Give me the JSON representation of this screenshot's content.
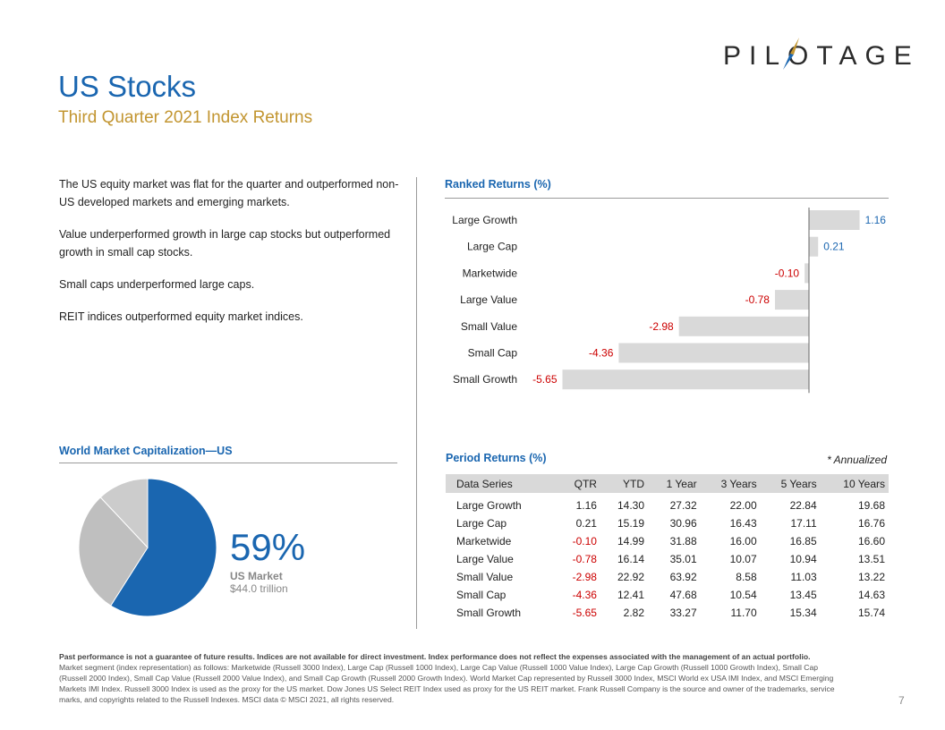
{
  "logo": {
    "text": "PILOTAGE"
  },
  "header": {
    "title": "US Stocks",
    "subtitle": "Third Quarter 2021 Index Returns"
  },
  "bullets": [
    "The US equity market was flat for the quarter and outperformed non-US developed markets and emerging markets.",
    "Value underperformed growth in large cap stocks but outperformed growth in small cap stocks.",
    "Small caps underperformed large caps.",
    "REIT indices outperformed equity market indices."
  ],
  "ranked": {
    "title": "Ranked Returns (%)"
  },
  "world_cap": {
    "title": "World Market Capitalization—US",
    "percent": "59%",
    "label": "US Market",
    "value": "$44.0 trillion"
  },
  "period": {
    "title": "Period Returns (%)",
    "annualized": "* Annualized",
    "headers": [
      "Data Series",
      "QTR",
      "YTD",
      "1 Year",
      "3 Years",
      "5 Years",
      "10 Years"
    ],
    "rows": [
      [
        "Large Growth",
        "1.16",
        "14.30",
        "27.32",
        "22.00",
        "22.84",
        "19.68"
      ],
      [
        "Large Cap",
        "0.21",
        "15.19",
        "30.96",
        "16.43",
        "17.11",
        "16.76"
      ],
      [
        "Marketwide",
        "-0.10",
        "14.99",
        "31.88",
        "16.00",
        "16.85",
        "16.60"
      ],
      [
        "Large Value",
        "-0.78",
        "16.14",
        "35.01",
        "10.07",
        "10.94",
        "13.51"
      ],
      [
        "Small Value",
        "-2.98",
        "22.92",
        "63.92",
        "8.58",
        "11.03",
        "13.22"
      ],
      [
        "Small Cap",
        "-4.36",
        "12.41",
        "47.68",
        "10.54",
        "13.45",
        "14.63"
      ],
      [
        "Small Growth",
        "-5.65",
        "2.82",
        "33.27",
        "11.70",
        "15.34",
        "15.74"
      ]
    ]
  },
  "footnote": {
    "bold": "Past performance is not a guarantee of future results. Indices are not available for direct investment. Index performance does not reflect the expenses associated with the management of an actual portfolio.",
    "text": "Market segment (index representation) as follows: Marketwide (Russell 3000 Index), Large Cap (Russell 1000 Index), Large Cap Value (Russell 1000 Value Index), Large Cap Growth (Russell 1000 Growth Index), Small Cap (Russell 2000 Index), Small Cap Value (Russell 2000 Value Index), and Small Cap Growth (Russell 2000 Growth Index). World Market Cap represented by Russell 3000 Index, MSCI World ex USA IMI Index, and MSCI Emerging Markets IMI Index. Russell 3000 Index is used as the proxy for the US market. Dow Jones US Select REIT Index used as proxy for the US REIT market. Frank Russell Company is the source and owner of the trademarks, service marks, and copyrights related to the Russell Indexes. MSCI data © MSCI 2021, all rights reserved."
  },
  "page_number": "7",
  "colors": {
    "blue": "#1a66b0",
    "gold": "#c29530",
    "negative": "#cc0000",
    "bar": "#d9d9d9",
    "pie_us": "#1a66b0",
    "pie_other1": "#bfbfbf",
    "pie_other2": "#cccccc"
  },
  "chart_data": [
    {
      "type": "bar",
      "orientation": "horizontal",
      "title": "Ranked Returns (%)",
      "categories": [
        "Large Growth",
        "Large Cap",
        "Marketwide",
        "Large Value",
        "Small Value",
        "Small Cap",
        "Small Growth"
      ],
      "values": [
        1.16,
        0.21,
        -0.1,
        -0.78,
        -2.98,
        -4.36,
        -5.65
      ],
      "value_labels": [
        "1.16",
        "0.21",
        "-0.10",
        "-0.78",
        "-2.98",
        "-4.36",
        "-5.65"
      ],
      "xlim": [
        -5.65,
        1.16
      ],
      "grid": false
    },
    {
      "type": "pie",
      "title": "World Market Capitalization—US",
      "slices": [
        {
          "label": "US Market",
          "value": 59
        },
        {
          "label": "",
          "value": 29
        },
        {
          "label": "",
          "value": 12
        }
      ]
    }
  ]
}
